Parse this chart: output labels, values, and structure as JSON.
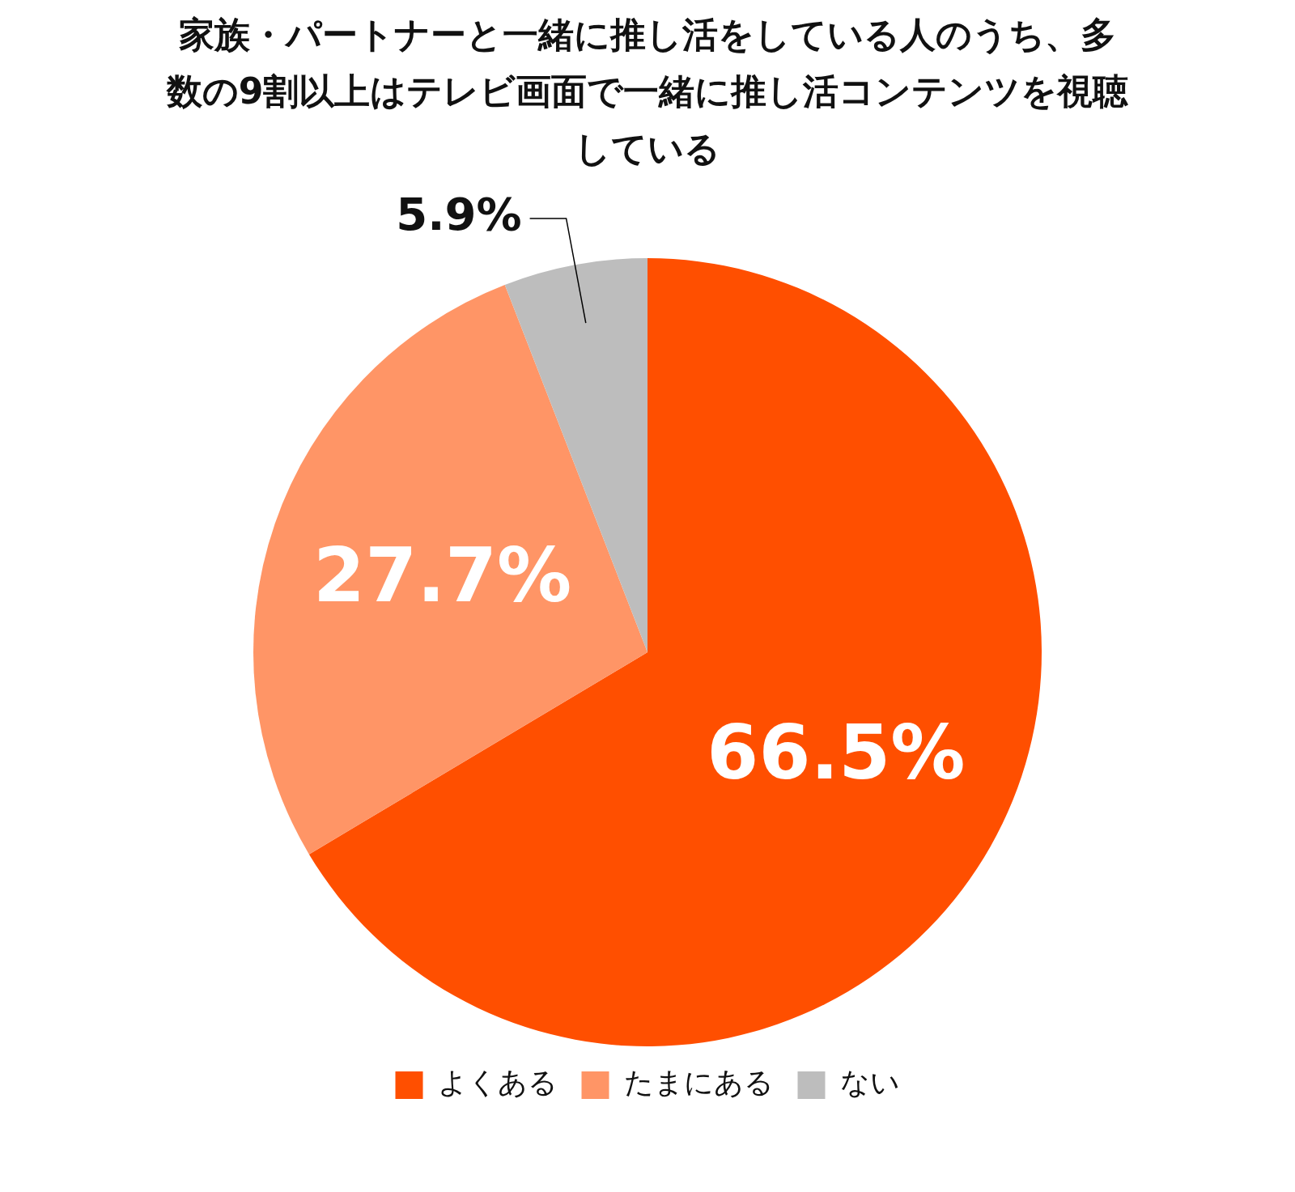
{
  "chart_data": {
    "type": "pie",
    "title": "家族・パートナーと一緒に推し活をしている人のうち、多数の9割以上はテレビ画面で一緒に推し活コンテンツを視聴している",
    "categories": [
      "よくある",
      "たまにある",
      "ない"
    ],
    "values": [
      66.5,
      27.7,
      5.9
    ],
    "colors": [
      "#ff4f00",
      "#ff9566",
      "#bdbdbd"
    ],
    "value_labels": [
      "66.5%",
      "27.7%",
      "5.9%"
    ],
    "legend": "bottom"
  }
}
